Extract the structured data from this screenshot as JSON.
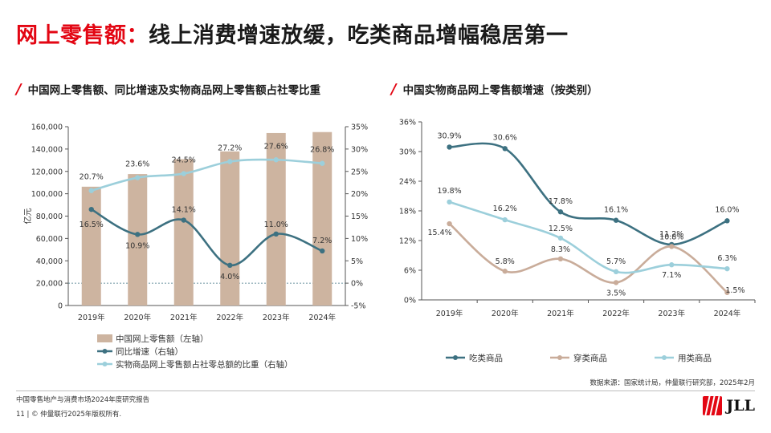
{
  "page": {
    "title_red": "网上零售额：",
    "title_dark": "线上消费增速放缓，吃类商品增幅稳居第一",
    "left_subtitle": "中国网上零售额、同比增速及实物商品网上零售额占社零比重",
    "right_subtitle": "中国实物商品网上零售额增速（按类别）",
    "source": "数据来源：国家统计局，仲量联行研究部，2025年2月",
    "footer_line1": "中国零售地产与消费市场2024年度研究报告",
    "footer_line2": "11 | © 仲量联行2025年版权所有.",
    "logo_text": "JLL"
  },
  "chart_data": [
    {
      "type": "bar",
      "categories": [
        "2019年",
        "2020年",
        "2021年",
        "2022年",
        "2023年",
        "2024年"
      ],
      "ylabel": "亿元",
      "ylim": [
        0,
        160000
      ],
      "yticks": [
        "0",
        "20,000",
        "40,000",
        "60,000",
        "80,000",
        "100,000",
        "120,000",
        "140,000",
        "160,000"
      ],
      "y2lim": [
        -5,
        35
      ],
      "y2ticks": [
        "-5%",
        "0%",
        "5%",
        "10%",
        "15%",
        "20%",
        "25%",
        "30%",
        "35%"
      ],
      "legend_position": "bottom-left",
      "series": [
        {
          "name": "中国网上零售额（左轴）",
          "kind": "bar",
          "axis": "left",
          "color": "#cdb4a0",
          "values": [
            106300,
            117600,
            130900,
            137900,
            154300,
            155200
          ]
        },
        {
          "name": "同比增速（右轴）",
          "kind": "line",
          "axis": "right",
          "color": "#3d7181",
          "values": [
            16.5,
            10.9,
            14.1,
            4.0,
            11.0,
            7.2
          ],
          "labels": [
            "16.5%",
            "10.9%",
            "14.1%",
            "4.0%",
            "11.0%",
            "7.2%"
          ]
        },
        {
          "name": "实物商品网上零售额占社零总额的比重（右轴）",
          "kind": "line",
          "axis": "right",
          "color": "#9ccfdb",
          "values": [
            20.7,
            23.6,
            24.5,
            27.2,
            27.6,
            26.8
          ],
          "labels": [
            "20.7%",
            "23.6%",
            "24.5%",
            "27.2%",
            "27.6%",
            "26.8%"
          ]
        }
      ]
    },
    {
      "type": "line",
      "categories": [
        "2019年",
        "2020年",
        "2021年",
        "2022年",
        "2023年",
        "2024年"
      ],
      "ylim": [
        0,
        36
      ],
      "yticks": [
        "0%",
        "6%",
        "12%",
        "18%",
        "24%",
        "30%",
        "36%"
      ],
      "legend_position": "bottom",
      "series": [
        {
          "name": "吃类商品",
          "color": "#3d7181",
          "values": [
            30.9,
            30.6,
            17.8,
            16.1,
            11.2,
            16.0
          ],
          "labels": [
            "30.9%",
            "30.6%",
            "17.8%",
            "16.1%",
            "11.2%",
            "16.0%"
          ]
        },
        {
          "name": "穿类商品",
          "color": "#c9ac9a",
          "values": [
            15.4,
            5.8,
            8.3,
            3.5,
            10.8,
            1.5
          ],
          "labels": [
            "15.4%",
            "5.8%",
            "8.3%",
            "3.5%",
            "10.8%",
            "1.5%"
          ]
        },
        {
          "name": "用类商品",
          "color": "#9ccfdb",
          "values": [
            19.8,
            16.2,
            12.5,
            5.7,
            7.1,
            6.3
          ],
          "labels": [
            "19.8%",
            "16.2%",
            "12.5%",
            "5.7%",
            "7.1%",
            "6.3%"
          ]
        }
      ]
    }
  ]
}
